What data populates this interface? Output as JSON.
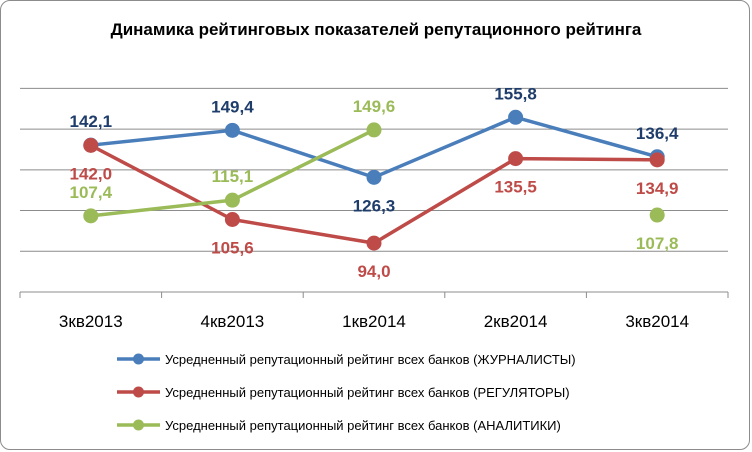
{
  "chart_data": {
    "type": "line",
    "title": "Динамика рейтинговых показателей репутационного рейтинга",
    "categories": [
      "3кв2013",
      "4кв2013",
      "1кв2014",
      "2кв2014",
      "3кв2014"
    ],
    "ylim": [
      70,
      180
    ],
    "grid": true,
    "legend_position": "bottom",
    "series": [
      {
        "name": "Усредненный репутационный рейтинг всех банков (ЖУРНАЛИСТЫ)",
        "color": "#4a7ebb",
        "label_color": "#1f3d6b",
        "values": [
          142.1,
          149.4,
          126.3,
          155.8,
          136.4
        ],
        "labels": [
          "142,1",
          "149,4",
          "126,3",
          "155,8",
          "136,4"
        ]
      },
      {
        "name": "Усредненный репутационный рейтинг всех банков (РЕГУЛЯТОРЫ)",
        "color": "#be4b48",
        "label_color": "#be4b48",
        "values": [
          142.0,
          105.6,
          94.0,
          135.5,
          134.9
        ],
        "labels": [
          "142,0",
          "105,6",
          "94,0",
          "135,5",
          "134,9"
        ]
      },
      {
        "name": "Усредненный репутационный рейтинг всех банков (АНАЛИТИКИ)",
        "color": "#9bbb59",
        "label_color": "#9bbb59",
        "values": [
          107.4,
          115.1,
          149.6,
          null,
          107.8
        ],
        "labels": [
          "107,4",
          "115,1",
          "149,6",
          "",
          "107,8"
        ]
      }
    ]
  }
}
